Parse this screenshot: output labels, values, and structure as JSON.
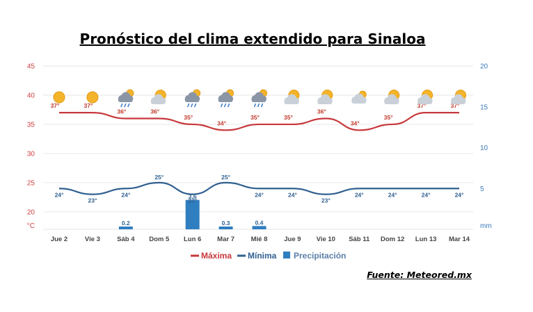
{
  "header": {
    "title": "Pronóstico del clima extendido para Sinaloa"
  },
  "footer": {
    "source": "Fuente: Meteored.mx"
  },
  "colors": {
    "max": "#c8383c",
    "min": "#2f5f8f",
    "precip": "#2f7ec0",
    "grid": "#e6e6e6"
  },
  "chart_data": {
    "type": "line",
    "categories": [
      "Jue 2",
      "Vie 3",
      "Sáb 4",
      "Dom 5",
      "Lun 6",
      "Mar 7",
      "Mié 8",
      "Jue 9",
      "Vie 10",
      "Sáb 11",
      "Dom 12",
      "Lun 13",
      "Mar 14"
    ],
    "y_left": {
      "ticks": [
        45,
        40,
        35,
        30,
        25,
        20
      ],
      "unit": "°C",
      "range": [
        17,
        45
      ]
    },
    "y_right": {
      "ticks": [
        20,
        15,
        10,
        5
      ],
      "unit": "mm",
      "range": [
        0,
        20
      ]
    },
    "max": {
      "name": "Máxima",
      "values": [
        37,
        37,
        36,
        36,
        35,
        34,
        35,
        35,
        36,
        34,
        35,
        37,
        37
      ],
      "labels": [
        "37°",
        "37°",
        "36°",
        "36°",
        "35°",
        "34°",
        "35°",
        "35°",
        "36°",
        "34°",
        "35°",
        "37°",
        "37°"
      ]
    },
    "min": {
      "name": "Mínima",
      "values": [
        24,
        23,
        24,
        25,
        23,
        25,
        24,
        24,
        23,
        24,
        24,
        24,
        24
      ],
      "labels": [
        "24°",
        "23°",
        "24°",
        "25°",
        "23°",
        "25°",
        "24°",
        "24°",
        "23°",
        "24°",
        "24°",
        "24°",
        "24°"
      ]
    },
    "precip": {
      "name": "Precipitación",
      "values": [
        0,
        0,
        0.2,
        0,
        3.6,
        0.3,
        0.4,
        0,
        0,
        0,
        0,
        0,
        0
      ],
      "labels": [
        "",
        "",
        "0.2",
        "",
        "3.6",
        "0.3",
        "0.4",
        "",
        "",
        "",
        "",
        "",
        ""
      ]
    },
    "icons": [
      "sun-icon",
      "sun-icon",
      "storm-cloud-icon",
      "sun-cloud-icon",
      "storm-cloud-icon",
      "storm-cloud-icon",
      "storm-cloud-icon",
      "sun-cloud-icon",
      "sun-cloud-icon",
      "cloud-icon",
      "sun-cloud-icon",
      "sun-cloud-icon",
      "sun-cloud-icon"
    ],
    "legend": {
      "position": "bottom-center",
      "items": [
        "Máxima",
        "Mínima",
        "Precipitación"
      ]
    },
    "grid": true
  }
}
